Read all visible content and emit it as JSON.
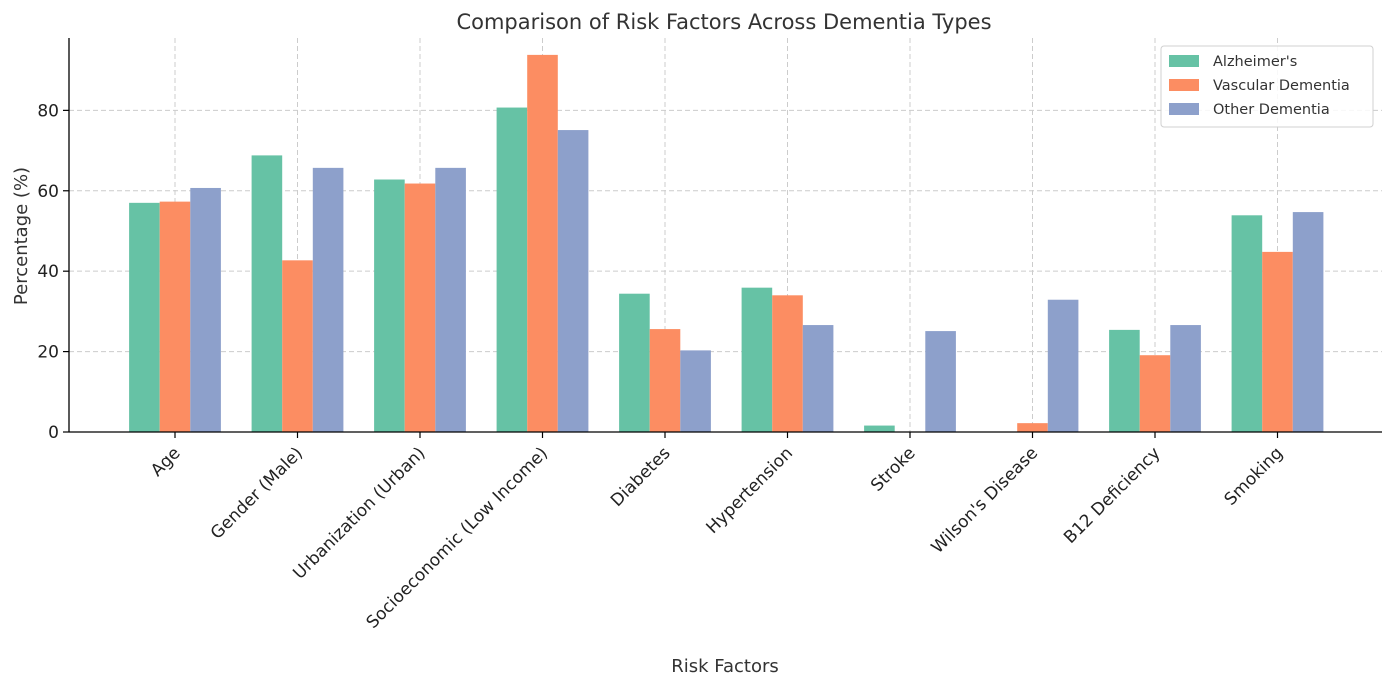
{
  "chart_data": {
    "type": "bar",
    "title": "Comparison of Risk Factors Across Dementia Types",
    "xlabel": "Risk Factors",
    "ylabel": "Percentage (%)",
    "ylim": [
      0,
      98
    ],
    "yticks": [
      0,
      20,
      40,
      60,
      80
    ],
    "grid": true,
    "legend_position": "top-right",
    "categories": [
      "Age",
      "Gender (Male)",
      "Urbanization (Urban)",
      "Socioeconomic (Low Income)",
      "Diabetes",
      "Hypertension",
      "Stroke",
      "Wilson's Disease",
      "B12 Deficiency",
      "Smoking"
    ],
    "series": [
      {
        "name": "Alzheimer's",
        "color": "#66c2a5",
        "values": [
          57.0,
          68.8,
          62.8,
          80.7,
          34.4,
          35.9,
          1.6,
          0,
          25.4,
          53.9
        ]
      },
      {
        "name": "Vascular Dementia",
        "color": "#fc8d62",
        "values": [
          57.3,
          42.7,
          61.8,
          93.8,
          25.6,
          34.0,
          0,
          2.2,
          19.1,
          44.8
        ]
      },
      {
        "name": "Other Dementia",
        "color": "#8da0cb",
        "values": [
          60.7,
          65.7,
          65.7,
          75.1,
          20.3,
          26.6,
          25.1,
          32.9,
          26.6,
          54.7
        ]
      }
    ]
  }
}
